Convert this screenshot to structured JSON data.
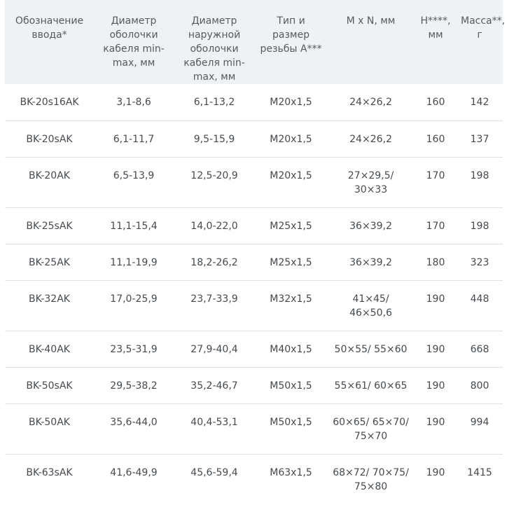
{
  "table": {
    "headers": [
      "Обозначение ввода*",
      "Диаметр оболочки кабеля min-max, мм",
      "Диаметр наружной оболочки кабеля min-max, мм",
      "Тип и размер резьбы А***",
      "M x N, мм",
      "H****, мм",
      "Масса**, г"
    ],
    "rows": [
      [
        "BK-20s16AK",
        "3,1-8,6",
        "6,1-13,2",
        "M20x1,5",
        "24×26,2",
        "160",
        "142"
      ],
      [
        "BK-20sAK",
        "6,1-11,7",
        "9,5-15,9",
        "M20x1,5",
        "24×26,2",
        "160",
        "137"
      ],
      [
        "BK-20AK",
        "6,5-13,9",
        "12,5-20,9",
        "M20x1,5",
        "27×29,5/ 30×33",
        "170",
        "198"
      ],
      [
        "BK-25sAK",
        "11,1-15,4",
        "14,0-22,0",
        "M25x1,5",
        "36×39,2",
        "170",
        "198"
      ],
      [
        "BK-25AK",
        "11,1-19,9",
        "18,2-26,2",
        "M25x1,5",
        "36×39,2",
        "180",
        "323"
      ],
      [
        "BK-32AK",
        "17,0-25,9",
        "23,7-33,9",
        "M32x1,5",
        "41×45/ 46×50,6",
        "190",
        "448"
      ],
      [
        "BK-40AK",
        "23,5-31,9",
        "27,9-40,4",
        "M40x1,5",
        "50×55/ 55×60",
        "190",
        "668"
      ],
      [
        "BK-50sAK",
        "29,5-38,2",
        "35,2-46,7",
        "M50x1,5",
        "55×61/ 60×65",
        "190",
        "800"
      ],
      [
        "BK-50AK",
        "35,6-44,0",
        "40,4-53,1",
        "M50x1,5",
        "60×65/ 65×70/ 75×70",
        "190",
        "994"
      ],
      [
        "BK-63sAK",
        "41,6-49,9",
        "45,6-59,4",
        "M63x1,5",
        "68×72/ 70×75/ 75×80",
        "190",
        "1415"
      ]
    ]
  }
}
